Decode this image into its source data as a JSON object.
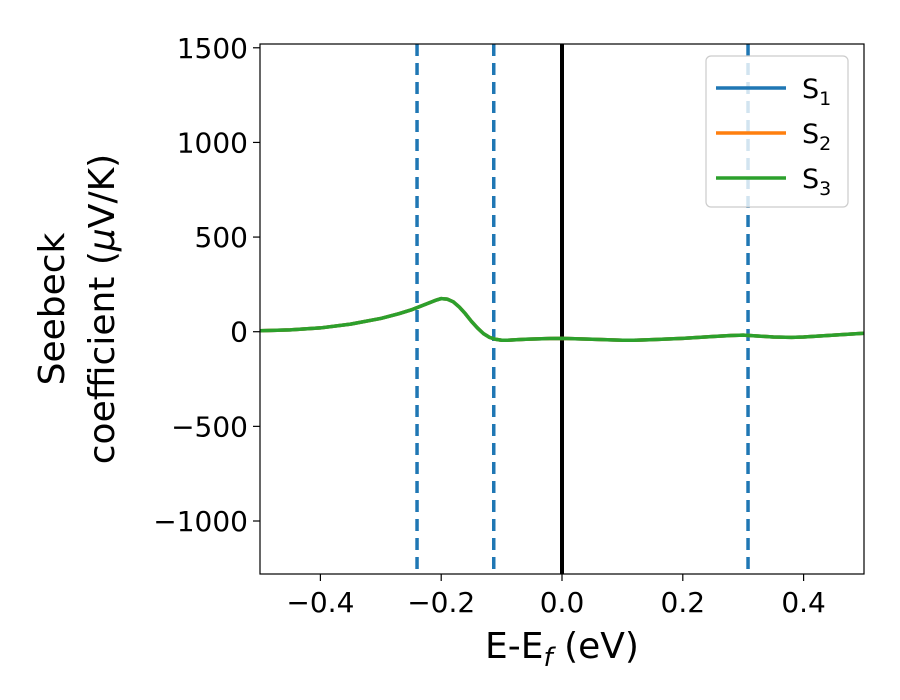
{
  "chart_data": {
    "type": "line",
    "title": "",
    "xlabel": "E-E",
    "xlabel_sub": "f",
    "xlabel_unit": " (eV)",
    "ylabel_line1": "Seebeck",
    "ylabel_line2": "coefficient  (",
    "ylabel_mu": "μ",
    "ylabel_unit": "V/K)",
    "xlim": [
      -0.5,
      0.5
    ],
    "ylim": [
      -1280,
      1520
    ],
    "xticks": [
      -0.4,
      -0.2,
      0.0,
      0.2,
      0.4
    ],
    "xtick_labels": [
      "−0.4",
      "−0.2",
      "0.0",
      "0.2",
      "0.4"
    ],
    "yticks": [
      -1000,
      -500,
      0,
      500,
      1000,
      1500
    ],
    "ytick_labels": [
      "−1000",
      "−500",
      "0",
      "500",
      "1000",
      "1500"
    ],
    "grid": false,
    "legend_position": "top-right",
    "x": [
      -0.5,
      -0.45,
      -0.4,
      -0.35,
      -0.3,
      -0.27,
      -0.25,
      -0.23,
      -0.21,
      -0.2,
      -0.19,
      -0.18,
      -0.17,
      -0.16,
      -0.15,
      -0.14,
      -0.13,
      -0.12,
      -0.11,
      -0.1,
      -0.09,
      -0.08,
      -0.06,
      -0.04,
      -0.02,
      0.0,
      0.05,
      0.1,
      0.12,
      0.15,
      0.2,
      0.25,
      0.28,
      0.3,
      0.32,
      0.35,
      0.38,
      0.4,
      0.45,
      0.5
    ],
    "series": [
      {
        "name": "S",
        "sub": "1",
        "color": "#1f77b4",
        "values": [
          5,
          10,
          20,
          40,
          70,
          95,
          115,
          140,
          165,
          175,
          172,
          158,
          130,
          95,
          55,
          20,
          -10,
          -30,
          -40,
          -45,
          -45,
          -43,
          -40,
          -38,
          -36,
          -35,
          -40,
          -45,
          -45,
          -42,
          -35,
          -25,
          -20,
          -18,
          -22,
          -28,
          -30,
          -28,
          -18,
          -8
        ]
      },
      {
        "name": "S",
        "sub": "2",
        "color": "#ff7f0e",
        "values": [
          5,
          10,
          20,
          40,
          70,
          95,
          115,
          140,
          165,
          175,
          172,
          158,
          130,
          95,
          55,
          20,
          -10,
          -30,
          -40,
          -45,
          -45,
          -43,
          -40,
          -38,
          -36,
          -35,
          -40,
          -45,
          -45,
          -42,
          -35,
          -25,
          -20,
          -18,
          -22,
          -28,
          -30,
          -28,
          -18,
          -8
        ]
      },
      {
        "name": "S",
        "sub": "3",
        "color": "#2ca02c",
        "values": [
          5,
          10,
          20,
          40,
          70,
          95,
          115,
          140,
          165,
          175,
          172,
          158,
          130,
          95,
          55,
          20,
          -10,
          -30,
          -40,
          -45,
          -45,
          -43,
          -40,
          -38,
          -36,
          -35,
          -40,
          -45,
          -45,
          -42,
          -35,
          -25,
          -20,
          -18,
          -22,
          -28,
          -30,
          -28,
          -18,
          -8
        ]
      }
    ],
    "vlines": [
      {
        "x": -0.24,
        "color": "#1f77b4",
        "style": "dashed"
      },
      {
        "x": -0.113,
        "color": "#1f77b4",
        "style": "dashed"
      },
      {
        "x": 0.0,
        "color": "#000000",
        "style": "solid"
      },
      {
        "x": 0.308,
        "color": "#1f77b4",
        "style": "dashed"
      }
    ]
  }
}
